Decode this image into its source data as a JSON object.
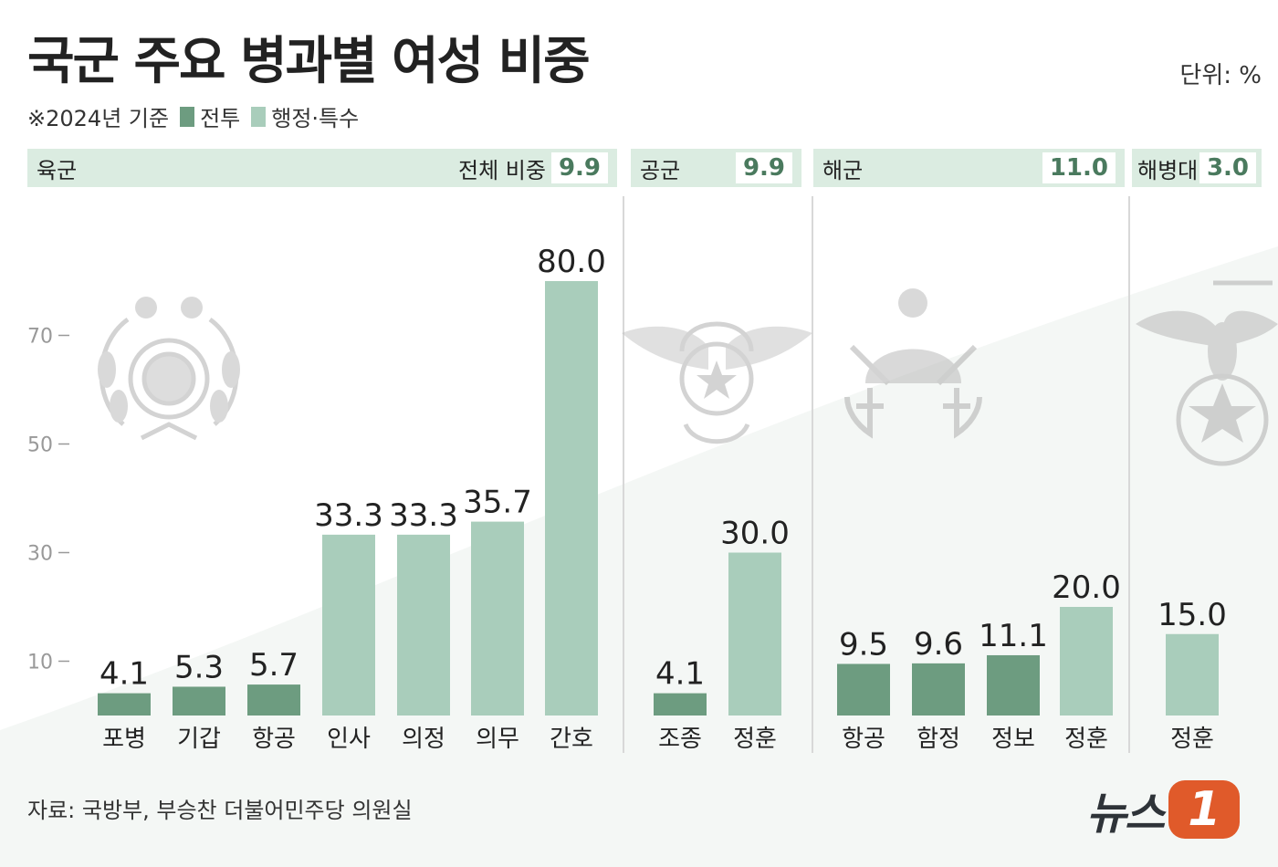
{
  "title": "국군 주요 병과별 여성 비중",
  "unit": "단위: %",
  "subtitle": {
    "note": "※2024년 기준",
    "legend_combat": "전투",
    "legend_admin": "행정·특수"
  },
  "colors": {
    "combat": "#6d9c80",
    "admin": "#a9cdbb",
    "header_bg": "#dbece1",
    "total_text": "#4a7a5e",
    "accent": "#e05a2a"
  },
  "branches": [
    {
      "name": "육군",
      "label": "전체 비중",
      "total": "9.9",
      "emblem": "army-emblem-icon"
    },
    {
      "name": "공군",
      "label": "",
      "total": "9.9",
      "emblem": "air-force-emblem-icon"
    },
    {
      "name": "해군",
      "label": "",
      "total": "11.0",
      "emblem": "navy-emblem-icon"
    },
    {
      "name": "해병대",
      "label": "",
      "total": "3.0",
      "emblem": "marine-corps-emblem-icon"
    }
  ],
  "chart_data": {
    "type": "bar",
    "title": "국군 주요 병과별 여성 비중",
    "ylabel": "",
    "xlabel": "",
    "ylim": [
      0,
      80
    ],
    "yticks": [
      10,
      30,
      50,
      70
    ],
    "grid": false,
    "legend": "top-left",
    "series": [
      {
        "name": "전투",
        "type": "combat"
      },
      {
        "name": "행정·특수",
        "type": "admin"
      }
    ],
    "bars": [
      {
        "branch": "육군",
        "category": "포병",
        "value": 4.1,
        "label": "4.1",
        "type": "combat"
      },
      {
        "branch": "육군",
        "category": "기갑",
        "value": 5.3,
        "label": "5.3",
        "type": "combat"
      },
      {
        "branch": "육군",
        "category": "항공",
        "value": 5.7,
        "label": "5.7",
        "type": "combat"
      },
      {
        "branch": "육군",
        "category": "인사",
        "value": 33.3,
        "label": "33.3",
        "type": "admin"
      },
      {
        "branch": "육군",
        "category": "의정",
        "value": 33.3,
        "label": "33.3",
        "type": "admin"
      },
      {
        "branch": "육군",
        "category": "의무",
        "value": 35.7,
        "label": "35.7",
        "type": "admin"
      },
      {
        "branch": "육군",
        "category": "간호",
        "value": 80.0,
        "label": "80.0",
        "type": "admin"
      },
      {
        "branch": "공군",
        "category": "조종",
        "value": 4.1,
        "label": "4.1",
        "type": "combat"
      },
      {
        "branch": "공군",
        "category": "정훈",
        "value": 30.0,
        "label": "30.0",
        "type": "admin"
      },
      {
        "branch": "해군",
        "category": "항공",
        "value": 9.5,
        "label": "9.5",
        "type": "combat"
      },
      {
        "branch": "해군",
        "category": "함정",
        "value": 9.6,
        "label": "9.6",
        "type": "combat"
      },
      {
        "branch": "해군",
        "category": "정보",
        "value": 11.1,
        "label": "11.1",
        "type": "combat"
      },
      {
        "branch": "해군",
        "category": "정훈",
        "value": 20.0,
        "label": "20.0",
        "type": "admin"
      },
      {
        "branch": "해병대",
        "category": "정훈",
        "value": 15.0,
        "label": "15.0",
        "type": "admin"
      }
    ]
  },
  "source": "자료: 국방부, 부승찬 더불어민주당 의원실",
  "logo": {
    "text": "뉴스",
    "mark": "1"
  }
}
